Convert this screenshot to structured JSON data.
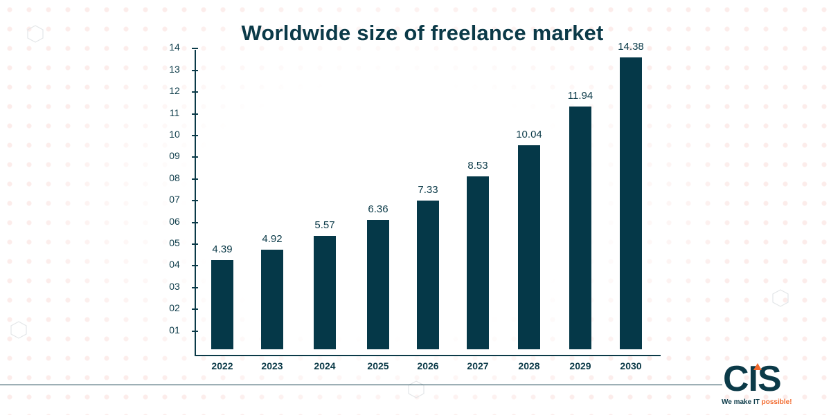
{
  "chart_data": {
    "type": "bar",
    "title": "Worldwide size of freelance market",
    "xlabel": "",
    "ylabel": "",
    "categories": [
      "2022",
      "2023",
      "2024",
      "2025",
      "2026",
      "2027",
      "2028",
      "2029",
      "2030"
    ],
    "values": [
      4.39,
      4.92,
      5.57,
      6.36,
      7.33,
      8.53,
      10.04,
      11.94,
      14.38
    ],
    "value_labels": [
      "4.39",
      "4.92",
      "5.57",
      "6.36",
      "7.33",
      "8.53",
      "10.04",
      "11.94",
      "14.38"
    ],
    "y_tick_labels": [
      "01",
      "02",
      "03",
      "04",
      "05",
      "06",
      "07",
      "08",
      "09",
      "10",
      "11",
      "12",
      "13",
      "14"
    ],
    "ylim": [
      0,
      14
    ],
    "grid": false,
    "legend": null,
    "bar_color": "#053848"
  },
  "branding": {
    "logo_text": "CIS",
    "tagline_prefix": "We make IT ",
    "tagline_accent": "possible!",
    "accent_color": "#f26a2e",
    "primary_color": "#0b3a48"
  }
}
